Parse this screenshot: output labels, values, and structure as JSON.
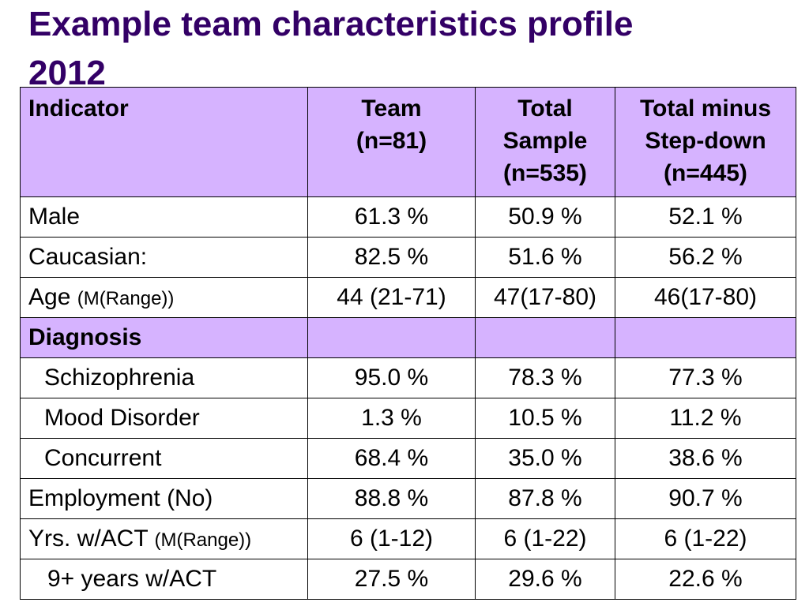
{
  "title": {
    "line1": "Example team characteristics profile",
    "line2": "2012"
  },
  "table": {
    "header": {
      "indicator": "Indicator",
      "team": [
        "Team",
        "(n=81)"
      ],
      "total": [
        "Total",
        "Sample",
        "(n=535)"
      ],
      "minus": [
        "Total minus",
        "Step-down",
        "(n=445)"
      ]
    },
    "rows": [
      {
        "label": "Male",
        "note": "",
        "team": "61.3 %",
        "total": "50.9 %",
        "minus": "52.1 %"
      },
      {
        "label": "Caucasian:",
        "note": "",
        "team": "82.5 %",
        "total": "51.6 %",
        "minus": "56.2 %"
      },
      {
        "label": "Age",
        "note": "(M(Range))",
        "team": "44 (21-71)",
        "total": "47(17-80)",
        "minus": "46(17-80)"
      }
    ],
    "section": {
      "label": "Diagnosis"
    },
    "diagnosis_rows": [
      {
        "label": "Schizophrenia",
        "team": "95.0 %",
        "total": "78.3 %",
        "minus": "77.3 %"
      },
      {
        "label": "Mood Disorder",
        "team": "1.3 %",
        "total": "10.5 %",
        "minus": "11.2 %"
      },
      {
        "label": "Concurrent",
        "team": "68.4 %",
        "total": "35.0 %",
        "minus": "38.6 %"
      }
    ],
    "tail_rows": [
      {
        "label": "Employment (No)",
        "note": "",
        "team": "88.8 %",
        "total": "87.8 %",
        "minus": "90.7 %"
      },
      {
        "label": "Yrs. w/ACT",
        "note": "(M(Range))",
        "team": "6 (1-12)",
        "total": "6 (1-22)",
        "minus": "6 (1-22)"
      },
      {
        "label": "9+ years w/ACT",
        "note": "",
        "team": "27.5 %",
        "total": "29.6 %",
        "minus": "22.6 %"
      }
    ]
  }
}
